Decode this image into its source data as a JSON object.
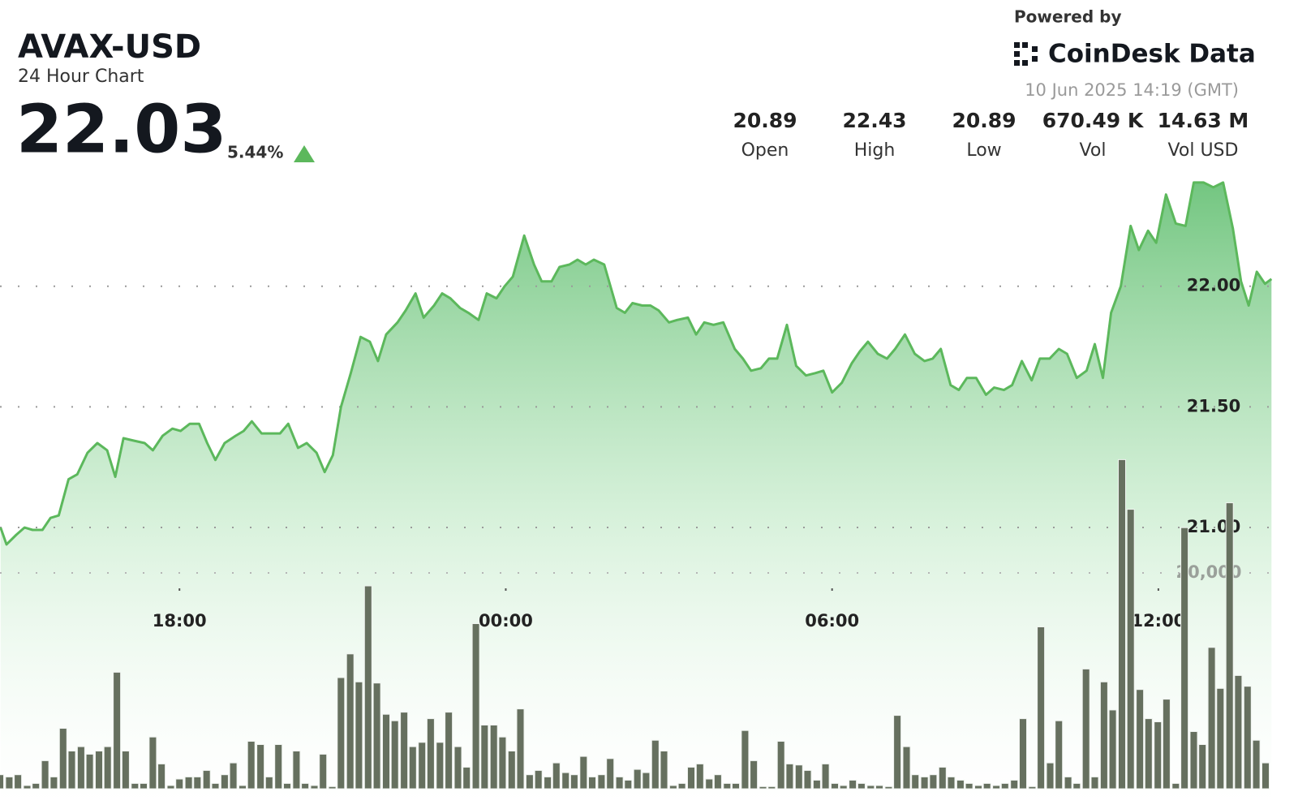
{
  "header": {
    "symbol": "AVAX-USD",
    "subtitle": "24 Hour Chart",
    "price": "22.03",
    "change": "5.44%",
    "powered_by": "Powered by",
    "brand": "CoinDesk Data",
    "timestamp": "10 Jun 2025 14:19 (GMT)"
  },
  "stats": [
    {
      "value": "20.89",
      "label": "Open"
    },
    {
      "value": "22.43",
      "label": "High"
    },
    {
      "value": "20.89",
      "label": "Low"
    },
    {
      "value": "670.49 K",
      "label": "Vol"
    },
    {
      "value": "14.63 M",
      "label": "Vol USD"
    }
  ],
  "chart_data": {
    "type": "area",
    "color": "#5cb85c",
    "xlim": [
      14.7,
      38.09
    ],
    "xticks": [
      {
        "value": 18,
        "label": "18:00"
      },
      {
        "value": 24,
        "label": "00:00"
      },
      {
        "value": 30,
        "label": "06:00"
      },
      {
        "value": 36,
        "label": "12:00"
      }
    ],
    "ylim": [
      19.85,
      22.48
    ],
    "yticks": [
      {
        "value": 21,
        "label": "21.00"
      },
      {
        "value": 21.5,
        "label": "21.50"
      },
      {
        "value": 22,
        "label": "22.00"
      }
    ],
    "y2lim": [
      0,
      57300
    ],
    "y2ticks": [
      {
        "value": 20000,
        "label": "20,000"
      }
    ],
    "grid": true,
    "x": [
      14.71,
      14.82,
      15.0,
      15.15,
      15.3,
      15.48,
      15.63,
      15.78,
      15.96,
      16.12,
      16.31,
      16.49,
      16.67,
      16.82,
      16.97,
      17.16,
      17.36,
      17.51,
      17.69,
      17.87,
      18.02,
      18.19,
      18.36,
      18.51,
      18.66,
      18.83,
      19.03,
      19.18,
      19.33,
      19.51,
      19.7,
      19.85,
      20.0,
      20.18,
      20.34,
      20.52,
      20.67,
      20.82,
      20.97,
      21.15,
      21.33,
      21.5,
      21.65,
      21.8,
      22.01,
      22.16,
      22.34,
      22.49,
      22.68,
      22.83,
      22.98,
      23.16,
      23.31,
      23.5,
      23.65,
      23.83,
      23.98,
      24.13,
      24.34,
      24.52,
      24.66,
      24.84,
      24.99,
      25.17,
      25.32,
      25.47,
      25.62,
      25.81,
      26.04,
      26.19,
      26.33,
      26.51,
      26.66,
      26.81,
      27.0,
      27.15,
      27.35,
      27.5,
      27.65,
      27.82,
      28.0,
      28.21,
      28.36,
      28.51,
      28.69,
      28.84,
      28.99,
      29.17,
      29.34,
      29.52,
      29.69,
      29.84,
      30.0,
      30.18,
      30.36,
      30.51,
      30.66,
      30.84,
      31.01,
      31.16,
      31.34,
      31.52,
      31.7,
      31.85,
      32.0,
      32.18,
      32.33,
      32.48,
      32.65,
      32.83,
      32.98,
      33.16,
      33.31,
      33.49,
      33.67,
      33.82,
      34.0,
      34.17,
      34.32,
      34.5,
      34.68,
      34.83,
      34.98,
      35.13,
      35.31,
      35.49,
      35.64,
      35.81,
      35.96,
      36.14,
      36.32,
      36.5,
      36.65,
      36.83,
      37.01,
      37.19,
      37.37,
      37.52,
      37.66,
      37.81,
      37.96,
      38.08
    ],
    "values": [
      21.0,
      20.93,
      20.97,
      21.0,
      20.99,
      20.99,
      21.04,
      21.05,
      21.2,
      21.22,
      21.31,
      21.35,
      21.32,
      21.21,
      21.37,
      21.36,
      21.35,
      21.32,
      21.38,
      21.41,
      21.4,
      21.43,
      21.43,
      21.35,
      21.28,
      21.35,
      21.38,
      21.4,
      21.44,
      21.39,
      21.39,
      21.39,
      21.43,
      21.33,
      21.35,
      21.31,
      21.23,
      21.3,
      21.5,
      21.64,
      21.79,
      21.77,
      21.69,
      21.8,
      21.85,
      21.9,
      21.97,
      21.87,
      21.92,
      21.97,
      21.95,
      21.91,
      21.89,
      21.86,
      21.97,
      21.95,
      22.0,
      22.04,
      22.21,
      22.09,
      22.02,
      22.02,
      22.08,
      22.09,
      22.11,
      22.09,
      22.11,
      22.09,
      21.91,
      21.89,
      21.93,
      21.92,
      21.92,
      21.9,
      21.85,
      21.86,
      21.87,
      21.8,
      21.85,
      21.84,
      21.85,
      21.74,
      21.7,
      21.65,
      21.66,
      21.7,
      21.7,
      21.84,
      21.67,
      21.63,
      21.64,
      21.65,
      21.56,
      21.6,
      21.68,
      21.73,
      21.77,
      21.72,
      21.7,
      21.74,
      21.8,
      21.72,
      21.69,
      21.7,
      21.74,
      21.59,
      21.57,
      21.62,
      21.62,
      21.55,
      21.58,
      21.57,
      21.59,
      21.69,
      21.61,
      21.7,
      21.7,
      21.74,
      21.72,
      21.62,
      21.65,
      21.76,
      21.62,
      21.89,
      22.0,
      22.25,
      22.15,
      22.23,
      22.18,
      22.38,
      22.26,
      22.25,
      22.43,
      22.43,
      22.41,
      22.43,
      22.24,
      22.02,
      21.92,
      22.06,
      22.01,
      22.03
    ],
    "volume": {
      "type": "bar",
      "axis": "y2",
      "color": "#66705f",
      "x": [
        14.7,
        14.87,
        15.03,
        15.2,
        15.36,
        15.53,
        15.69,
        15.86,
        16.02,
        16.19,
        16.35,
        16.52,
        16.68,
        16.85,
        17.01,
        17.18,
        17.34,
        17.51,
        17.67,
        17.84,
        18.0,
        18.17,
        18.33,
        18.5,
        18.66,
        18.83,
        18.99,
        19.16,
        19.32,
        19.49,
        19.65,
        19.82,
        19.98,
        20.15,
        20.31,
        20.48,
        20.64,
        20.81,
        20.97,
        21.14,
        21.3,
        21.47,
        21.63,
        21.8,
        21.96,
        22.13,
        22.29,
        22.46,
        22.62,
        22.79,
        22.95,
        23.12,
        23.28,
        23.45,
        23.61,
        23.78,
        23.94,
        24.11,
        24.27,
        24.44,
        24.6,
        24.77,
        24.93,
        25.1,
        25.26,
        25.43,
        25.59,
        25.76,
        25.92,
        26.09,
        26.25,
        26.42,
        26.58,
        26.75,
        26.91,
        27.08,
        27.24,
        27.41,
        27.57,
        27.74,
        27.9,
        28.07,
        28.23,
        28.4,
        28.56,
        28.73,
        28.89,
        29.06,
        29.22,
        29.39,
        29.55,
        29.72,
        29.88,
        30.05,
        30.21,
        30.38,
        30.54,
        30.71,
        30.87,
        31.04,
        31.2,
        31.37,
        31.53,
        31.7,
        31.86,
        32.03,
        32.19,
        32.36,
        32.52,
        32.69,
        32.85,
        33.02,
        33.18,
        33.35,
        33.51,
        33.68,
        33.84,
        34.01,
        34.17,
        34.34,
        34.5,
        34.67,
        34.83,
        35.0,
        35.16,
        35.33,
        35.49,
        35.66,
        35.82,
        35.99,
        36.15,
        36.32,
        36.48,
        36.65,
        36.81,
        36.98,
        37.14,
        37.31,
        37.47,
        37.64,
        37.8,
        37.97
      ],
      "values": [
        1300,
        1100,
        1300,
        300,
        500,
        2600,
        1100,
        5600,
        3500,
        3900,
        3200,
        3500,
        3900,
        10800,
        3500,
        500,
        500,
        4800,
        2300,
        300,
        900,
        1100,
        1100,
        1700,
        500,
        1300,
        2400,
        300,
        4400,
        4100,
        1100,
        4100,
        500,
        3500,
        500,
        300,
        3200,
        200,
        10300,
        12500,
        9900,
        18800,
        9800,
        6900,
        6300,
        7100,
        3900,
        4300,
        6500,
        4300,
        7100,
        3900,
        2000,
        15300,
        5900,
        5900,
        4800,
        3500,
        7400,
        1300,
        1700,
        1100,
        2400,
        1500,
        1300,
        3000,
        1100,
        1300,
        2800,
        1100,
        800,
        1800,
        1500,
        4500,
        3500,
        300,
        500,
        2000,
        2300,
        900,
        1300,
        500,
        500,
        5400,
        2600,
        200,
        200,
        4400,
        2300,
        2200,
        1700,
        800,
        2300,
        500,
        300,
        800,
        500,
        300,
        300,
        200,
        6800,
        3900,
        1300,
        1100,
        1300,
        2000,
        1100,
        800,
        500,
        300,
        500,
        300,
        500,
        800,
        6500,
        200,
        15000,
        2400,
        6300,
        1100,
        500,
        11100,
        1100,
        9900,
        7300,
        30500,
        25900,
        9200,
        6500,
        6200,
        8300,
        500,
        24200,
        5300,
        4100,
        13100,
        9300,
        26500,
        10500,
        9500,
        4500,
        2400
      ]
    }
  }
}
